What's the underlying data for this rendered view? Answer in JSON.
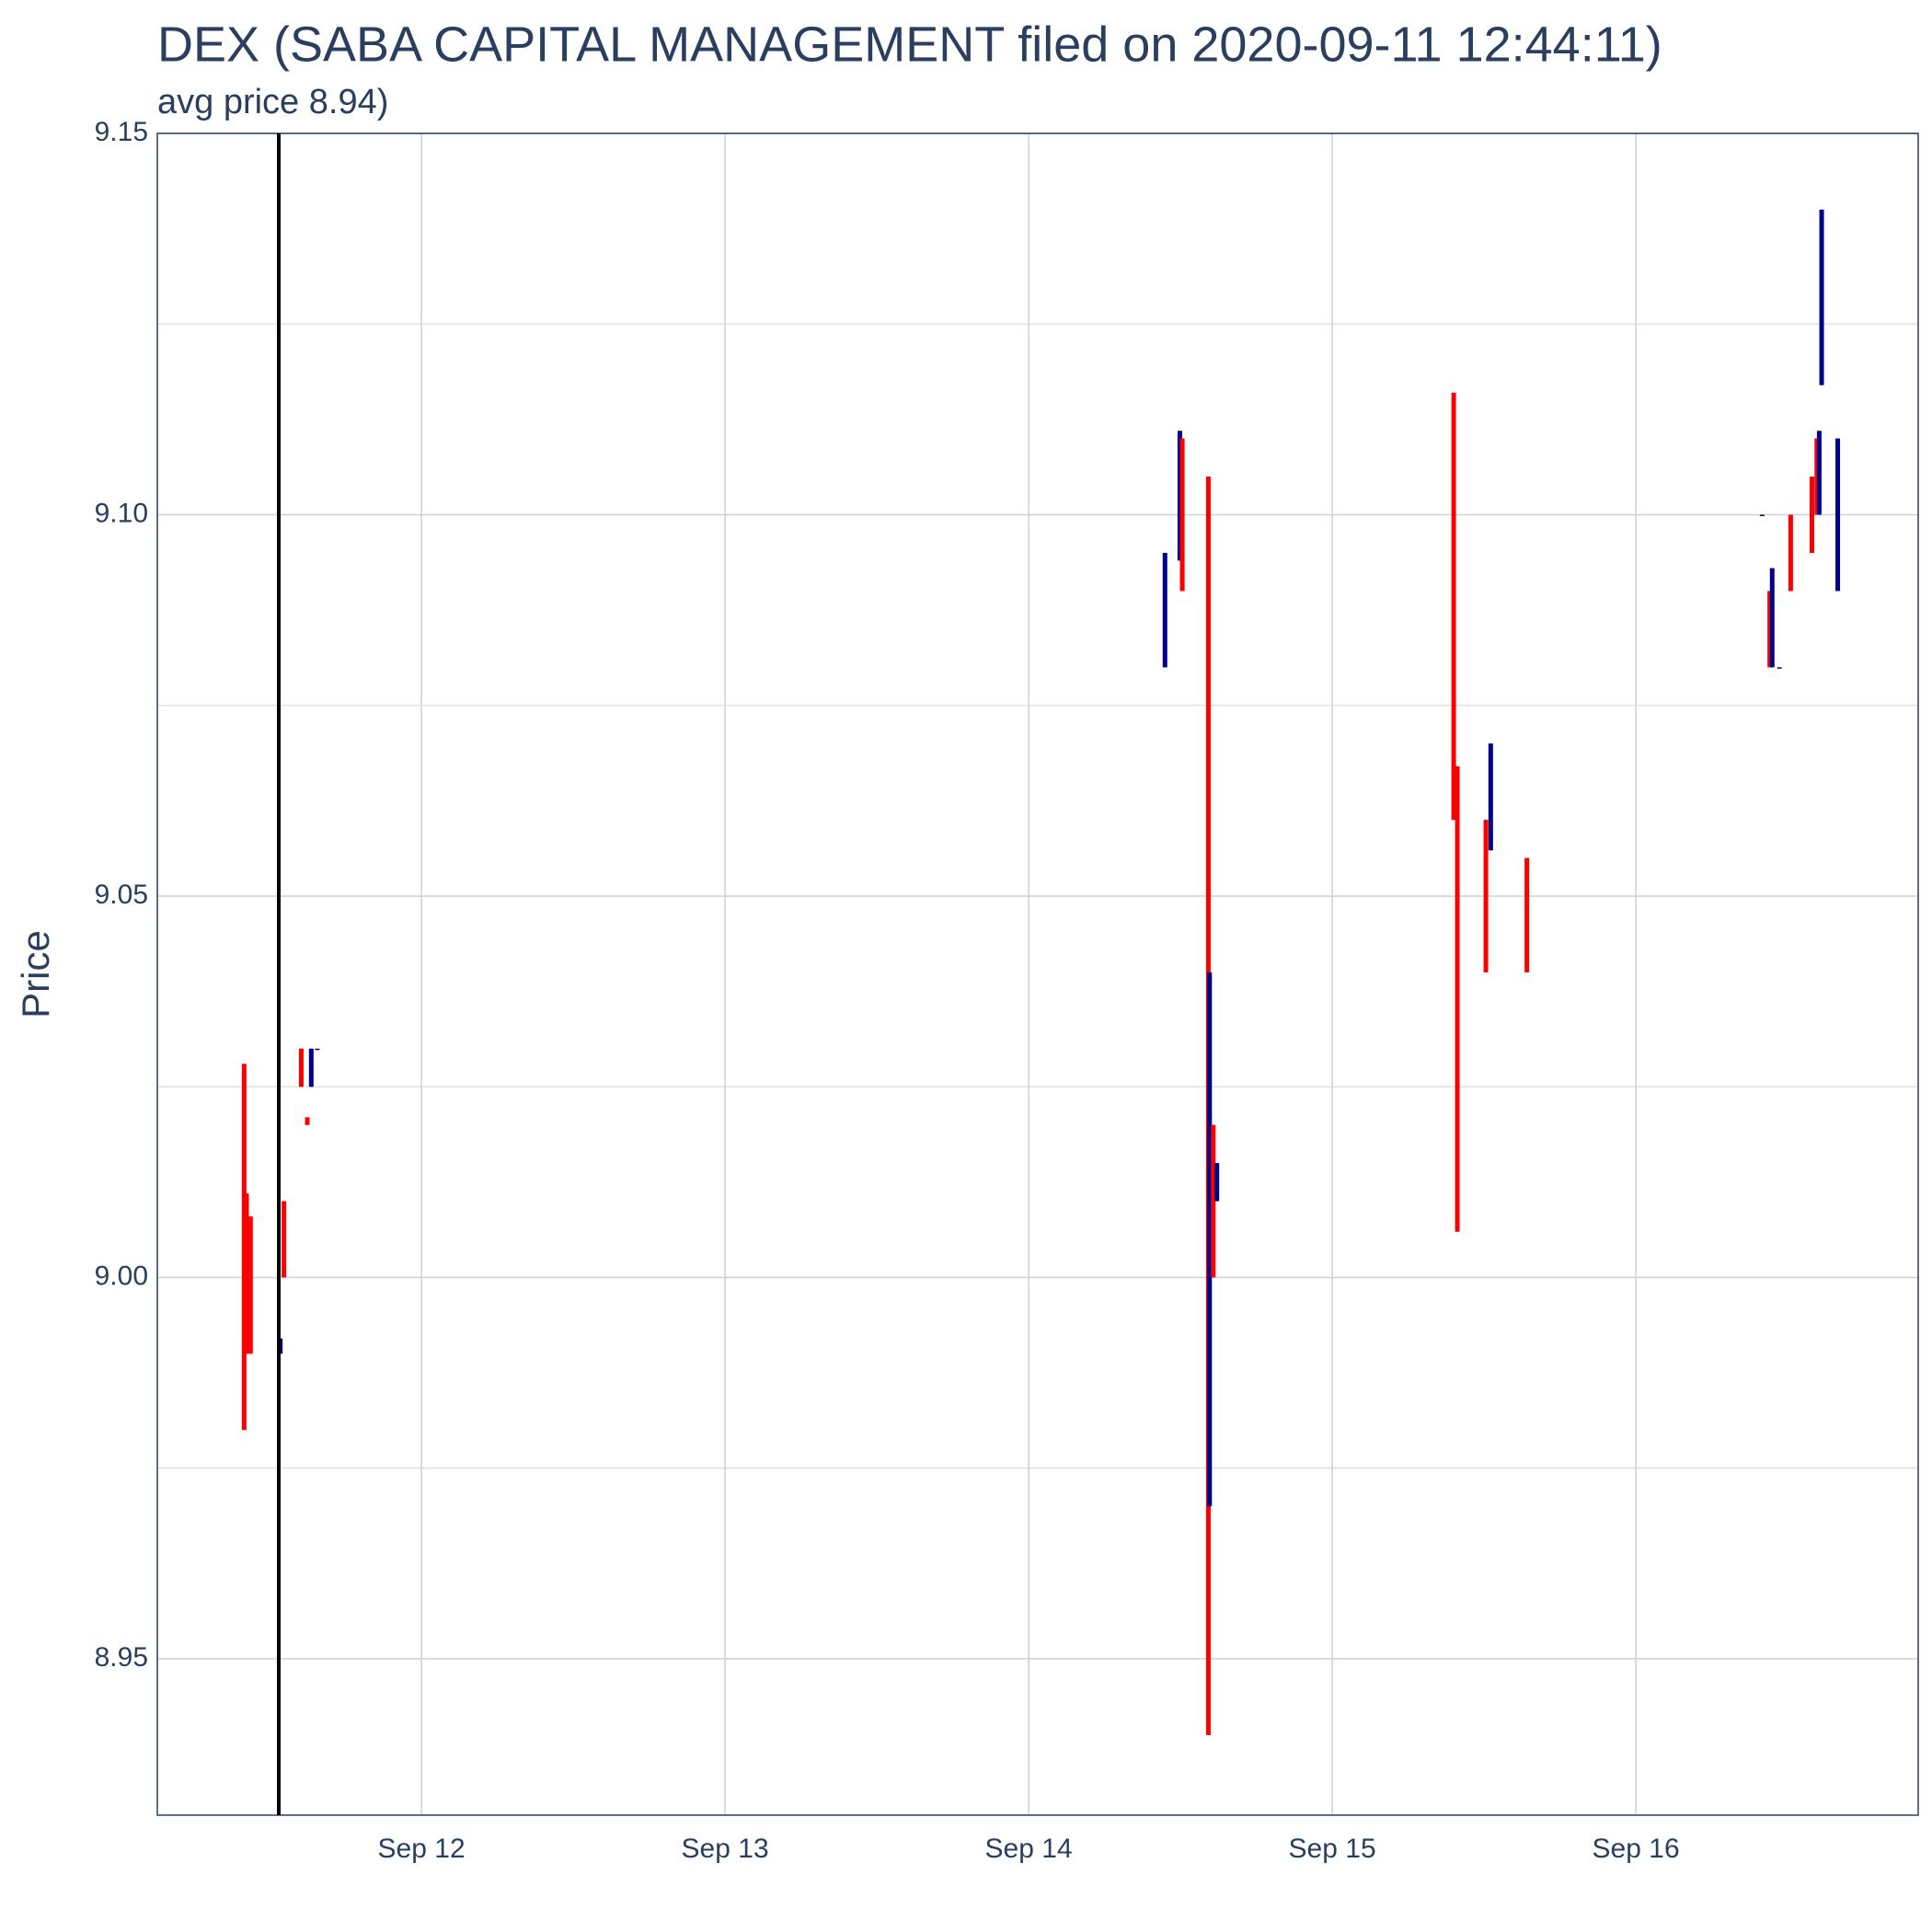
{
  "chart_data": {
    "type": "candlestick",
    "title": "DEX (SABA CAPITAL MANAGEMENT filed on 2020-09-11 12:44:11)",
    "subtitle": "avg price 8.94)",
    "y_label": "Price",
    "x": [
      11.416,
      11.424,
      11.437,
      11.535,
      11.547,
      11.604,
      11.624,
      11.637,
      11.657,
      14.449,
      14.498,
      14.506,
      14.592,
      14.596,
      14.608,
      14.62,
      15.4,
      15.412,
      15.506,
      15.522,
      15.641,
      16.416,
      16.441,
      16.449,
      16.473,
      16.51,
      16.58,
      16.596,
      16.604,
      16.612,
      16.665
    ],
    "open": [
      9.028,
      9.011,
      9.008,
      8.99,
      9.01,
      9.03,
      9.021,
      9.025,
      9.03,
      9.08,
      9.094,
      9.11,
      9.105,
      8.97,
      9.02,
      9.01,
      9.116,
      9.067,
      9.06,
      9.056,
      9.055,
      9.1,
      9.09,
      9.08,
      9.08,
      9.1,
      9.105,
      9.11,
      9.1,
      9.117,
      9.09
    ],
    "high": [
      9.028,
      9.011,
      9.008,
      8.992,
      9.01,
      9.03,
      9.021,
      9.03,
      9.03,
      9.095,
      9.111,
      9.11,
      9.105,
      9.04,
      9.02,
      9.015,
      9.116,
      9.067,
      9.06,
      9.07,
      9.055,
      9.1,
      9.09,
      9.093,
      9.08,
      9.1,
      9.105,
      9.11,
      9.111,
      9.14,
      9.11
    ],
    "low": [
      8.98,
      8.99,
      8.99,
      8.99,
      9.0,
      9.025,
      9.02,
      9.025,
      9.03,
      9.08,
      9.094,
      9.09,
      8.94,
      8.97,
      9.0,
      9.01,
      9.06,
      9.006,
      9.04,
      9.056,
      9.04,
      9.1,
      9.08,
      9.08,
      9.08,
      9.09,
      9.095,
      9.1,
      9.1,
      9.117,
      9.09
    ],
    "close": [
      8.98,
      8.99,
      8.99,
      8.992,
      9.0,
      9.025,
      9.02,
      9.03,
      9.03,
      9.095,
      9.111,
      9.09,
      8.94,
      9.04,
      9.0,
      9.015,
      9.06,
      9.006,
      9.04,
      9.07,
      9.04,
      9.1,
      9.08,
      9.093,
      9.08,
      9.09,
      9.095,
      9.1,
      9.111,
      9.14,
      9.11
    ],
    "increasing_color": "#00008b",
    "decreasing_color": "#ff0000",
    "filing_x": 11.53,
    "filing_color": "#000000",
    "xlim": [
      11.13,
      16.93
    ],
    "xticks": [
      {
        "value": 12,
        "label": "Sep 12"
      },
      {
        "value": 13,
        "label": "Sep 13"
      },
      {
        "value": 14,
        "label": "Sep 14"
      },
      {
        "value": 15,
        "label": "Sep 15"
      },
      {
        "value": 16,
        "label": "Sep 16"
      }
    ],
    "ylim": [
      8.9295,
      9.15
    ],
    "yticks": [
      8.95,
      {
        "value": 9,
        "label": "9.00"
      },
      9.05,
      {
        "value": 9.1,
        "label": "9.10"
      },
      9.15
    ],
    "y_minor_grid": [
      8.975,
      9.025,
      9.075,
      9.125
    ],
    "grid": true
  }
}
